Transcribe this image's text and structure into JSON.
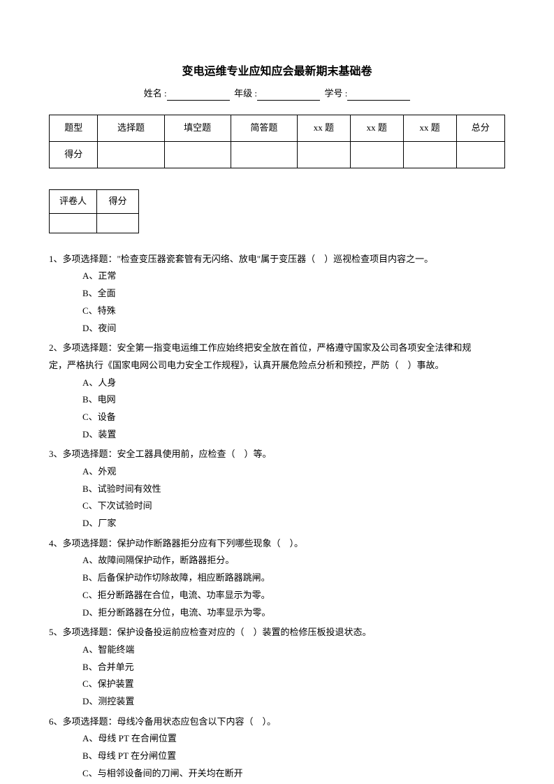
{
  "title": "变电运维专业应知应会最新期末基础卷",
  "info": {
    "name_label": "姓名 :",
    "grade_label": "年级 :",
    "id_label": "学号 :"
  },
  "score_table": {
    "headers": [
      "题型",
      "选择题",
      "填空题",
      "简答题",
      "xx 题",
      "xx 题",
      "xx 题",
      "总分"
    ],
    "row_label": "得分"
  },
  "grader_table": {
    "grader_label": "评卷人",
    "score_label": "得分"
  },
  "questions": [
    {
      "num": "1、",
      "type": "多项选择题：",
      "text": "\"检查变压器瓷套管有无闪络、放电\"属于变压器（　）巡视检查项目内容之一。",
      "options": [
        "A、正常",
        "B、全面",
        "C、特殊",
        "D、夜间"
      ]
    },
    {
      "num": "2、",
      "type": "多项选择题：",
      "text": "安全第一指变电运维工作应始终把安全放在首位，严格遵守国家及公司各项安全法律和规",
      "continuation": "定，严格执行《国家电网公司电力安全工作规程》，认真开展危险点分析和预控，严防（　）事故。",
      "options": [
        "A、人身",
        "B、电网",
        "C、设备",
        "D、装置"
      ]
    },
    {
      "num": "3、",
      "type": "多项选择题：",
      "text": "安全工器具使用前，应检查（　）等。",
      "options": [
        "A、外观",
        "B、试验时间有效性",
        "C、下次试验时间",
        "D、厂家"
      ]
    },
    {
      "num": "4、",
      "type": "多项选择题：",
      "text": "保护动作断路器拒分应有下列哪些现象（　）。",
      "options": [
        "A、故障间隔保护动作，断路器拒分。",
        "B、后备保护动作切除故障，相应断路器跳闸。",
        "C、拒分断路器在合位，电流、功率显示为零。",
        "D、拒分断路器在分位，电流、功率显示为零。"
      ]
    },
    {
      "num": "5、",
      "type": "多项选择题：",
      "text": "保护设备投运前应检查对应的（　）装置的检修压板投退状态。",
      "options": [
        "A、智能终端",
        "B、合并单元",
        "C、保护装置",
        "D、测控装置"
      ]
    },
    {
      "num": "6、",
      "type": "多项选择题：",
      "text": "母线冷备用状态应包含以下内容（　）。",
      "options": [
        "A、母线 PT 在合闸位置",
        "B、母线 PT 在分闸位置",
        "C、与相邻设备间的刀闸、开关均在断开"
      ]
    }
  ]
}
